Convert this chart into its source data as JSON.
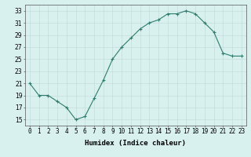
{
  "x": [
    0,
    1,
    2,
    3,
    4,
    5,
    6,
    7,
    8,
    9,
    10,
    11,
    12,
    13,
    14,
    15,
    16,
    17,
    18,
    19,
    20,
    21,
    22,
    23
  ],
  "y": [
    21,
    19,
    19,
    18,
    17,
    15,
    15.5,
    18.5,
    21.5,
    25,
    27,
    28.5,
    30,
    31,
    31.5,
    32.5,
    32.5,
    33,
    32.5,
    31,
    29.5,
    26,
    25.5,
    25.5
  ],
  "line_color": "#2e7d6e",
  "marker": "+",
  "marker_size": 3.5,
  "bg_color": "#d8f0ee",
  "grid_color": "#c4dedd",
  "xlabel": "Humidex (Indice chaleur)",
  "xlim": [
    -0.5,
    23.5
  ],
  "ylim": [
    14,
    34
  ],
  "yticks": [
    15,
    17,
    19,
    21,
    23,
    25,
    27,
    29,
    31,
    33
  ],
  "xtick_labels": [
    "0",
    "1",
    "2",
    "3",
    "4",
    "5",
    "6",
    "7",
    "8",
    "9",
    "10",
    "11",
    "12",
    "13",
    "14",
    "15",
    "16",
    "17",
    "18",
    "19",
    "20",
    "21",
    "22",
    "23"
  ],
  "label_fontsize": 6.5,
  "tick_fontsize": 5.5
}
